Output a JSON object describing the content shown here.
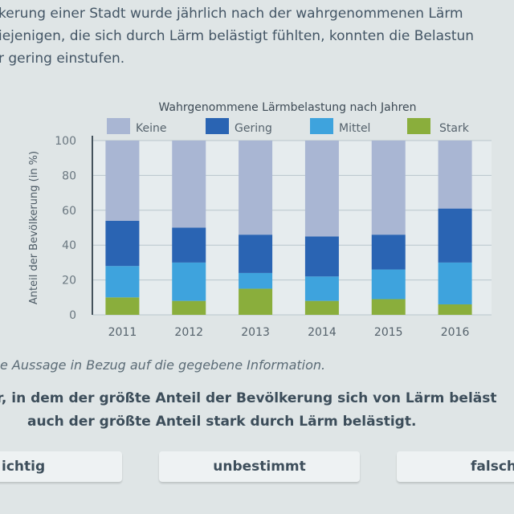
{
  "intro": {
    "line1": "kerung einer Stadt wurde jährlich nach der wahrgenommenen Lärm",
    "line2": "iejenigen, die sich durch Lärm belästigt fühlten, konnten die Belastun",
    "line3": "r gering einstufen."
  },
  "chart_data": {
    "type": "bar",
    "stacked": true,
    "title": "Wahrgenommene Lärmbelastung nach Jahren",
    "ylabel": "Anteil der Bevölkerung (in %)",
    "xlabel": "",
    "ylim": [
      0,
      100
    ],
    "yticks": [
      "0",
      "20",
      "40",
      "60",
      "80",
      "100"
    ],
    "categories": [
      "2011",
      "2012",
      "2013",
      "2014",
      "2015",
      "2016"
    ],
    "legend_position": "top",
    "grid": true,
    "series": [
      {
        "name": "Stark",
        "color": "#8aae3c",
        "values": [
          10,
          8,
          15,
          8,
          9,
          6
        ]
      },
      {
        "name": "Mittel",
        "color": "#3ea3dd",
        "values": [
          18,
          22,
          9,
          14,
          17,
          24
        ]
      },
      {
        "name": "Gering",
        "color": "#2a64b3",
        "values": [
          26,
          20,
          22,
          23,
          20,
          31
        ]
      },
      {
        "name": "Keine",
        "color": "#a9b6d3",
        "values": [
          46,
          50,
          54,
          55,
          54,
          39
        ]
      }
    ],
    "legend_order": [
      "Keine",
      "Gering",
      "Mittel",
      "Stark"
    ]
  },
  "instruction": "e Aussage in Bezug auf die gegebene Information.",
  "statement": {
    "line1": "r, in dem der größte Anteil der Bevölkerung sich von Lärm beläst",
    "line2": "auch der größte Anteil stark durch Lärm belästigt."
  },
  "answers": {
    "richtig": "ichtig",
    "unbestimmt": "unbestimmt",
    "falsch": "falsch"
  }
}
